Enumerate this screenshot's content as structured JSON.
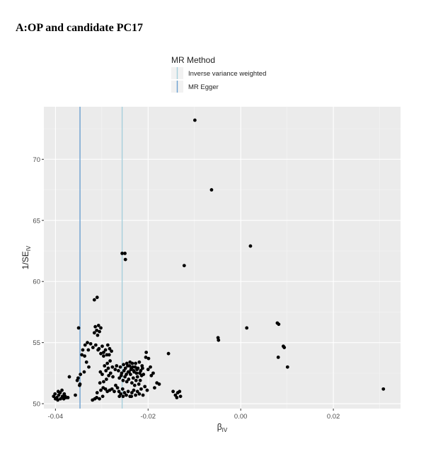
{
  "figure": {
    "title": "A:OP and candidate PC17"
  },
  "watermark": "知乎 @涂涂",
  "chart_data": {
    "type": "scatter",
    "title": "A:OP and candidate PC17",
    "xlabel": "β",
    "xlabel_sub": "IV",
    "ylabel": "1/SE",
    "ylabel_sub": "IV",
    "xlim": [
      -0.0425,
      0.0345
    ],
    "ylim": [
      49.6,
      74.3
    ],
    "x_ticks": [
      -0.04,
      -0.02,
      0.0,
      0.02
    ],
    "x_tick_labels": [
      "-0.04",
      "-0.02",
      "0.00",
      "0.02"
    ],
    "y_ticks": [
      50,
      55,
      60,
      65,
      70
    ],
    "y_tick_labels": [
      "50",
      "55",
      "60",
      "65",
      "70"
    ],
    "grid": true,
    "panel_background": "#ebebeb",
    "point_color": "#000000",
    "legend": {
      "title": "MR Method",
      "placement": "top",
      "entries": [
        {
          "label": "Inverse variance weighted",
          "color": "#a6d0dc"
        },
        {
          "label": "MR Egger",
          "color": "#6a9fd0"
        }
      ]
    },
    "vlines": [
      {
        "method": "Inverse variance weighted",
        "x": -0.0256,
        "color": "#a6d0dc"
      },
      {
        "method": "MR Egger",
        "x": -0.0347,
        "color": "#6a9fd0"
      }
    ],
    "points": [
      [
        -0.0099,
        73.2
      ],
      [
        -0.0063,
        67.5
      ],
      [
        0.0021,
        62.9
      ],
      [
        -0.0256,
        62.3
      ],
      [
        -0.025,
        62.3
      ],
      [
        -0.0249,
        61.8
      ],
      [
        -0.0122,
        61.3
      ],
      [
        -0.031,
        58.7
      ],
      [
        -0.0316,
        58.5
      ],
      [
        0.0082,
        56.5
      ],
      [
        0.0079,
        56.6
      ],
      [
        -0.035,
        56.2
      ],
      [
        0.0013,
        56.2
      ],
      [
        -0.0307,
        56.4
      ],
      [
        -0.0314,
        56.3
      ],
      [
        -0.0302,
        56.2
      ],
      [
        -0.0311,
        56.0
      ],
      [
        -0.0305,
        55.9
      ],
      [
        -0.0316,
        55.8
      ],
      [
        -0.0309,
        55.6
      ],
      [
        -0.0049,
        55.4
      ],
      [
        -0.0048,
        55.2
      ],
      [
        0.0092,
        54.7
      ],
      [
        0.0094,
        54.6
      ],
      [
        0.0081,
        53.8
      ],
      [
        0.0101,
        53.0
      ],
      [
        -0.0331,
        55.0
      ],
      [
        -0.0336,
        54.8
      ],
      [
        -0.0324,
        54.9
      ],
      [
        -0.0319,
        54.6
      ],
      [
        -0.0329,
        54.4
      ],
      [
        -0.0313,
        54.8
      ],
      [
        -0.0306,
        54.5
      ],
      [
        -0.0299,
        54.7
      ],
      [
        -0.0292,
        54.4
      ],
      [
        -0.0287,
        54.8
      ],
      [
        -0.0283,
        54.5
      ],
      [
        -0.0296,
        54.2
      ],
      [
        -0.0302,
        54.1
      ],
      [
        -0.0289,
        54.0
      ],
      [
        -0.0279,
        54.3
      ],
      [
        -0.0284,
        54.0
      ],
      [
        -0.0308,
        54.4
      ],
      [
        -0.0296,
        53.9
      ],
      [
        -0.0341,
        54.4
      ],
      [
        -0.0343,
        54.0
      ],
      [
        -0.0337,
        53.9
      ],
      [
        -0.0333,
        53.4
      ],
      [
        -0.0328,
        53.0
      ],
      [
        -0.0346,
        52.4
      ],
      [
        -0.0351,
        52.1
      ],
      [
        -0.0347,
        51.6
      ],
      [
        -0.0353,
        51.9
      ],
      [
        -0.037,
        52.2
      ],
      [
        -0.0348,
        51.5
      ],
      [
        -0.0338,
        52.6
      ],
      [
        -0.0404,
        50.6
      ],
      [
        -0.04,
        50.4
      ],
      [
        -0.0397,
        50.5
      ],
      [
        -0.0393,
        50.7
      ],
      [
        -0.0389,
        50.4
      ],
      [
        -0.0385,
        50.6
      ],
      [
        -0.0381,
        50.8
      ],
      [
        -0.0377,
        50.5
      ],
      [
        -0.0394,
        51.0
      ],
      [
        -0.039,
        50.9
      ],
      [
        -0.0386,
        51.1
      ],
      [
        -0.0401,
        50.8
      ],
      [
        -0.0382,
        50.4
      ],
      [
        -0.0379,
        50.6
      ],
      [
        -0.0357,
        50.7
      ],
      [
        -0.0395,
        50.3
      ],
      [
        -0.0373,
        50.5
      ],
      [
        -0.0315,
        50.4
      ],
      [
        -0.0311,
        50.5
      ],
      [
        -0.0305,
        50.4
      ],
      [
        -0.0298,
        50.6
      ],
      [
        -0.032,
        50.3
      ],
      [
        -0.031,
        50.9
      ],
      [
        -0.0302,
        51.1
      ],
      [
        -0.0297,
        51.3
      ],
      [
        -0.0292,
        51.2
      ],
      [
        -0.0288,
        51.0
      ],
      [
        -0.0283,
        51.1
      ],
      [
        -0.0278,
        51.2
      ],
      [
        -0.0273,
        51.0
      ],
      [
        -0.0304,
        51.7
      ],
      [
        -0.0296,
        51.8
      ],
      [
        -0.029,
        52.0
      ],
      [
        -0.0285,
        52.3
      ],
      [
        -0.0299,
        52.4
      ],
      [
        -0.0303,
        52.6
      ],
      [
        -0.0291,
        52.7
      ],
      [
        -0.0286,
        52.9
      ],
      [
        -0.0281,
        52.5
      ],
      [
        -0.0276,
        52.2
      ],
      [
        -0.0294,
        53.1
      ],
      [
        -0.0288,
        53.3
      ],
      [
        -0.0282,
        53.5
      ],
      [
        -0.0277,
        53.0
      ],
      [
        -0.0271,
        52.8
      ],
      [
        -0.0268,
        53.1
      ],
      [
        -0.0264,
        52.7
      ],
      [
        -0.026,
        53.0
      ],
      [
        -0.0257,
        52.5
      ],
      [
        -0.0253,
        53.2
      ],
      [
        -0.0249,
        52.9
      ],
      [
        -0.0246,
        53.3
      ],
      [
        -0.0243,
        52.6
      ],
      [
        -0.024,
        53.1
      ],
      [
        -0.0237,
        52.8
      ],
      [
        -0.0234,
        53.3
      ],
      [
        -0.0231,
        52.7
      ],
      [
        -0.0228,
        53.0
      ],
      [
        -0.0225,
        52.5
      ],
      [
        -0.0222,
        52.9
      ],
      [
        -0.0219,
        53.4
      ],
      [
        -0.0216,
        52.7
      ],
      [
        -0.0213,
        53.1
      ],
      [
        -0.021,
        52.4
      ],
      [
        -0.0262,
        52.1
      ],
      [
        -0.0258,
        52.3
      ],
      [
        -0.0254,
        51.9
      ],
      [
        -0.025,
        52.2
      ],
      [
        -0.0246,
        51.8
      ],
      [
        -0.0242,
        52.0
      ],
      [
        -0.0238,
        52.4
      ],
      [
        -0.0235,
        51.7
      ],
      [
        -0.0232,
        52.1
      ],
      [
        -0.0229,
        51.5
      ],
      [
        -0.0226,
        51.9
      ],
      [
        -0.0223,
        52.2
      ],
      [
        -0.022,
        51.6
      ],
      [
        -0.0217,
        51.9
      ],
      [
        -0.0214,
        52.3
      ],
      [
        -0.0252,
        52.7
      ],
      [
        -0.0247,
        52.4
      ],
      [
        -0.0241,
        52.6
      ],
      [
        -0.0236,
        52.9
      ],
      [
        -0.023,
        52.6
      ],
      [
        -0.0224,
        52.8
      ],
      [
        -0.0218,
        52.5
      ],
      [
        -0.0212,
        52.9
      ],
      [
        -0.0244,
        53.1
      ],
      [
        -0.0239,
        53.4
      ],
      [
        -0.0233,
        53.0
      ],
      [
        -0.0227,
        53.3
      ],
      [
        -0.027,
        51.5
      ],
      [
        -0.0266,
        51.3
      ],
      [
        -0.0263,
        51.0
      ],
      [
        -0.0259,
        50.8
      ],
      [
        -0.0255,
        51.2
      ],
      [
        -0.0251,
        50.9
      ],
      [
        -0.0247,
        50.7
      ],
      [
        -0.0243,
        51.0
      ],
      [
        -0.0239,
        50.6
      ],
      [
        -0.0235,
        50.9
      ],
      [
        -0.0231,
        51.1
      ],
      [
        -0.0227,
        50.7
      ],
      [
        -0.0223,
        51.0
      ],
      [
        -0.0219,
        50.8
      ],
      [
        -0.0215,
        51.2
      ],
      [
        -0.0211,
        50.7
      ],
      [
        -0.0262,
        50.6
      ],
      [
        -0.0254,
        50.6
      ],
      [
        -0.0236,
        50.6
      ],
      [
        -0.0204,
        54.2
      ],
      [
        -0.0199,
        53.7
      ],
      [
        -0.0195,
        53.0
      ],
      [
        -0.0205,
        53.8
      ],
      [
        -0.02,
        52.8
      ],
      [
        -0.0193,
        52.3
      ],
      [
        -0.0189,
        52.5
      ],
      [
        -0.0181,
        51.7
      ],
      [
        -0.0176,
        51.6
      ],
      [
        -0.0186,
        51.3
      ],
      [
        -0.0207,
        51.4
      ],
      [
        -0.0202,
        51.1
      ],
      [
        -0.0156,
        54.1
      ],
      [
        -0.0146,
        51.0
      ],
      [
        -0.0141,
        50.7
      ],
      [
        -0.0136,
        50.9
      ],
      [
        -0.0132,
        51.0
      ],
      [
        -0.013,
        50.6
      ],
      [
        -0.0138,
        50.5
      ],
      [
        0.0308,
        51.2
      ]
    ]
  }
}
